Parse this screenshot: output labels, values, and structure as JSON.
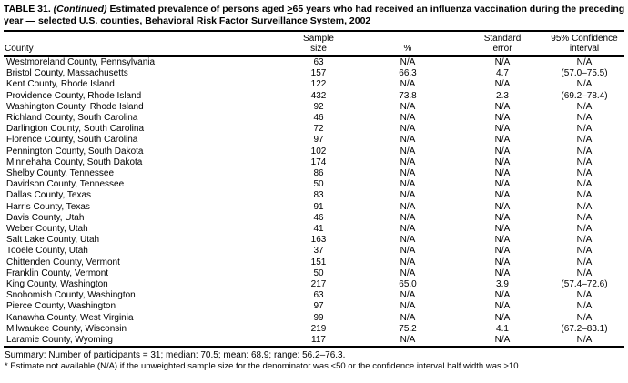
{
  "title": {
    "prefix": "TABLE 31. ",
    "continued": "(Continued)",
    "before_symbol": " Estimated prevalence of persons aged ",
    "ge_symbol": ">",
    "after_symbol": "65 years who had received an influenza vaccination during the preceding year — selected U.S. counties, Behavioral Risk Factor Surveillance System, 2002"
  },
  "table": {
    "headers": {
      "county": "County",
      "sample_size": "Sample\nsize",
      "percent": "%",
      "standard_error": "Standard\nerror",
      "confidence_interval": "95% Confidence\ninterval"
    },
    "rows": [
      {
        "county": "Westmoreland County, Pennsylvania",
        "sample_size": "63",
        "percent": "N/A",
        "standard_error": "N/A",
        "confidence_interval": "N/A"
      },
      {
        "county": "Bristol County, Massachusetts",
        "sample_size": "157",
        "percent": "66.3",
        "standard_error": "4.7",
        "confidence_interval": "(57.0–75.5)"
      },
      {
        "county": "Kent County, Rhode Island",
        "sample_size": "122",
        "percent": "N/A",
        "standard_error": "N/A",
        "confidence_interval": "N/A"
      },
      {
        "county": "Providence County, Rhode Island",
        "sample_size": "432",
        "percent": "73.8",
        "standard_error": "2.3",
        "confidence_interval": "(69.2–78.4)"
      },
      {
        "county": "Washington County, Rhode Island",
        "sample_size": "92",
        "percent": "N/A",
        "standard_error": "N/A",
        "confidence_interval": "N/A"
      },
      {
        "county": "Richland County, South Carolina",
        "sample_size": "46",
        "percent": "N/A",
        "standard_error": "N/A",
        "confidence_interval": "N/A"
      },
      {
        "county": "Darlington County, South Carolina",
        "sample_size": "72",
        "percent": "N/A",
        "standard_error": "N/A",
        "confidence_interval": "N/A"
      },
      {
        "county": "Florence County, South Carolina",
        "sample_size": "97",
        "percent": "N/A",
        "standard_error": "N/A",
        "confidence_interval": "N/A"
      },
      {
        "county": "Pennington County, South Dakota",
        "sample_size": "102",
        "percent": "N/A",
        "standard_error": "N/A",
        "confidence_interval": "N/A"
      },
      {
        "county": "Minnehaha County, South Dakota",
        "sample_size": "174",
        "percent": "N/A",
        "standard_error": "N/A",
        "confidence_interval": "N/A"
      },
      {
        "county": "Shelby County, Tennessee",
        "sample_size": "86",
        "percent": "N/A",
        "standard_error": "N/A",
        "confidence_interval": "N/A"
      },
      {
        "county": "Davidson County, Tennessee",
        "sample_size": "50",
        "percent": "N/A",
        "standard_error": "N/A",
        "confidence_interval": "N/A"
      },
      {
        "county": "Dallas County, Texas",
        "sample_size": "83",
        "percent": "N/A",
        "standard_error": "N/A",
        "confidence_interval": "N/A"
      },
      {
        "county": "Harris County, Texas",
        "sample_size": "91",
        "percent": "N/A",
        "standard_error": "N/A",
        "confidence_interval": "N/A"
      },
      {
        "county": "Davis County, Utah",
        "sample_size": "46",
        "percent": "N/A",
        "standard_error": "N/A",
        "confidence_interval": "N/A"
      },
      {
        "county": "Weber County, Utah",
        "sample_size": "41",
        "percent": "N/A",
        "standard_error": "N/A",
        "confidence_interval": "N/A"
      },
      {
        "county": "Salt Lake County, Utah",
        "sample_size": "163",
        "percent": "N/A",
        "standard_error": "N/A",
        "confidence_interval": "N/A"
      },
      {
        "county": "Tooele County, Utah",
        "sample_size": "37",
        "percent": "N/A",
        "standard_error": "N/A",
        "confidence_interval": "N/A"
      },
      {
        "county": "Chittenden County, Vermont",
        "sample_size": "151",
        "percent": "N/A",
        "standard_error": "N/A",
        "confidence_interval": "N/A"
      },
      {
        "county": "Franklin County, Vermont",
        "sample_size": "50",
        "percent": "N/A",
        "standard_error": "N/A",
        "confidence_interval": "N/A"
      },
      {
        "county": "King County, Washington",
        "sample_size": "217",
        "percent": "65.0",
        "standard_error": "3.9",
        "confidence_interval": "(57.4–72.6)"
      },
      {
        "county": "Snohomish County, Washington",
        "sample_size": "63",
        "percent": "N/A",
        "standard_error": "N/A",
        "confidence_interval": "N/A"
      },
      {
        "county": "Pierce County, Washington",
        "sample_size": "97",
        "percent": "N/A",
        "standard_error": "N/A",
        "confidence_interval": "N/A"
      },
      {
        "county": "Kanawha County, West Virginia",
        "sample_size": "99",
        "percent": "N/A",
        "standard_error": "N/A",
        "confidence_interval": "N/A"
      },
      {
        "county": "Milwaukee County, Wisconsin",
        "sample_size": "219",
        "percent": "75.2",
        "standard_error": "4.1",
        "confidence_interval": "(67.2–83.1)"
      },
      {
        "county": "Laramie County, Wyoming",
        "sample_size": "117",
        "percent": "N/A",
        "standard_error": "N/A",
        "confidence_interval": "N/A"
      }
    ]
  },
  "footer": {
    "summary": "Summary: Number of participants = 31; median: 70.5; mean: 68.9; range: 56.2–76.3.",
    "footnote": "* Estimate not available (N/A) if the unweighted sample size for the denominator was <50 or the confidence interval half width was >10."
  },
  "colors": {
    "text": "#000000",
    "background": "#ffffff",
    "rule": "#000000"
  }
}
